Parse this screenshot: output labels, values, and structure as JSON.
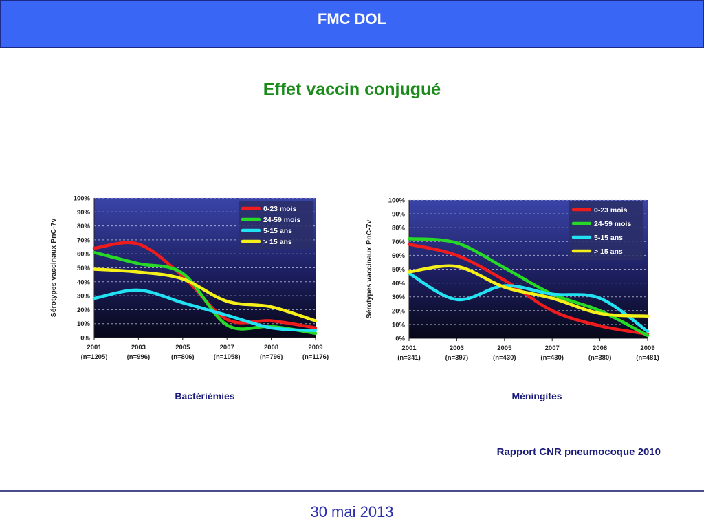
{
  "header": {
    "title": "FMC DOL"
  },
  "slide": {
    "title": "Effet vaccin conjugué",
    "source": "Rapport CNR pneumocoque 2010",
    "date": "30 mai 2013"
  },
  "chart_data": [
    {
      "type": "line",
      "caption": "Bactériémies",
      "ylabel": "Sérotypes vaccinaux PnC-7v",
      "x": [
        "2001",
        "2003",
        "2005",
        "2007",
        "2008",
        "2009"
      ],
      "x_sublabels": [
        "(n=1205)",
        "(n=996)",
        "(n=806)",
        "(n=1058)",
        "(n=796)",
        "(n=1176)"
      ],
      "ylim": [
        0,
        100
      ],
      "y_ticks": [
        "0%",
        "10%",
        "20%",
        "30%",
        "40%",
        "50%",
        "60%",
        "70%",
        "80%",
        "90%",
        "100%"
      ],
      "grid": true,
      "legend_position": "top-right",
      "series": [
        {
          "name": "0-23 mois",
          "color": "#ee1c1c",
          "values": [
            64,
            67,
            44,
            13,
            12,
            7
          ]
        },
        {
          "name": "24-59 mois",
          "color": "#27d827",
          "values": [
            61,
            53,
            46,
            9,
            8,
            3
          ]
        },
        {
          "name": "5-15 ans",
          "color": "#22e2f2",
          "values": [
            28,
            34,
            25,
            16,
            7,
            5
          ]
        },
        {
          "name": "> 15 ans",
          "color": "#f5ef1a",
          "values": [
            49,
            47,
            42,
            26,
            22,
            12
          ]
        }
      ]
    },
    {
      "type": "line",
      "caption": "Méningites",
      "ylabel": "Sérotypes vaccinaux PnC-7v",
      "x": [
        "2001",
        "2003",
        "2005",
        "2007",
        "2008",
        "2009"
      ],
      "x_sublabels": [
        "(n=341)",
        "(n=397)",
        "(n=430)",
        "(n=430)",
        "(n=380)",
        "(n=481)"
      ],
      "ylim": [
        0,
        100
      ],
      "y_ticks": [
        "0%",
        "10%",
        "20%",
        "30%",
        "40%",
        "50%",
        "60%",
        "70%",
        "80%",
        "90%",
        "100%"
      ],
      "grid": true,
      "legend_position": "top-right",
      "series": [
        {
          "name": "0-23 mois",
          "color": "#ee1c1c",
          "values": [
            68,
            60,
            42,
            20,
            9,
            3
          ]
        },
        {
          "name": "24-59 mois",
          "color": "#27d827",
          "values": [
            72,
            69,
            51,
            32,
            20,
            2
          ]
        },
        {
          "name": "5-15 ans",
          "color": "#22e2f2",
          "values": [
            47,
            28,
            38,
            32,
            29,
            5
          ]
        },
        {
          "name": "> 15 ans",
          "color": "#f5ef1a",
          "values": [
            48,
            52,
            37,
            29,
            18,
            16
          ]
        }
      ]
    }
  ]
}
